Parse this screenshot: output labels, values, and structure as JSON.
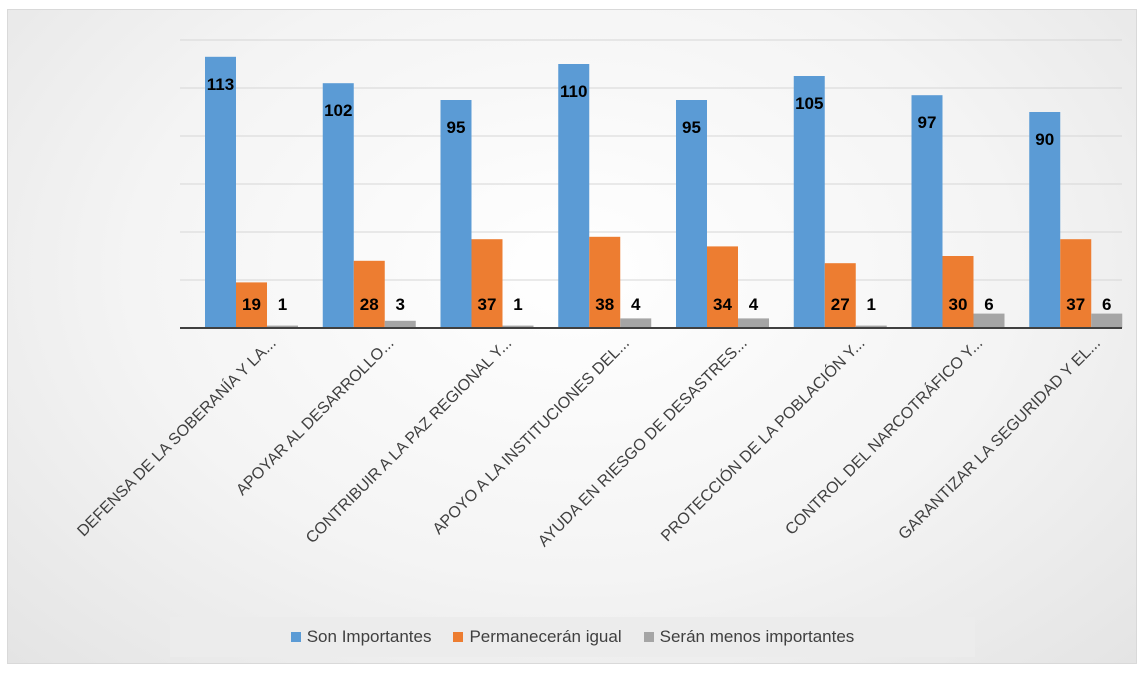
{
  "chart_data": {
    "type": "bar",
    "categories": [
      "DEFENSA DE LA SOBERANÍA Y LA...",
      "APOYAR AL DESARROLLO...",
      "CONTRIBUIR A LA PAZ REGIONAL Y...",
      "APOYO A LA INSTITUCIONES DEL...",
      "AYUDA EN RIESGO DE  DESASTRES...",
      "PROTECCIÓN DE LA POBLACIÓN Y...",
      "CONTROL DEL NARCOTRÁFICO Y...",
      "GARANTIZAR LA SEGURIDAD Y EL..."
    ],
    "series": [
      {
        "name": "Son Importantes",
        "color": "#5b9bd5",
        "values": [
          113,
          102,
          95,
          110,
          95,
          105,
          97,
          90
        ]
      },
      {
        "name": "Permanecerán igual",
        "color": "#ed7d31",
        "values": [
          19,
          28,
          37,
          38,
          34,
          27,
          30,
          37
        ]
      },
      {
        "name": "Serán menos importantes",
        "color": "#a5a5a5",
        "values": [
          1,
          3,
          1,
          4,
          4,
          1,
          6,
          6
        ]
      }
    ],
    "ylim": [
      0,
      120
    ],
    "grid": true,
    "legend_position": "bottom",
    "title": "",
    "xlabel": "",
    "ylabel": ""
  }
}
